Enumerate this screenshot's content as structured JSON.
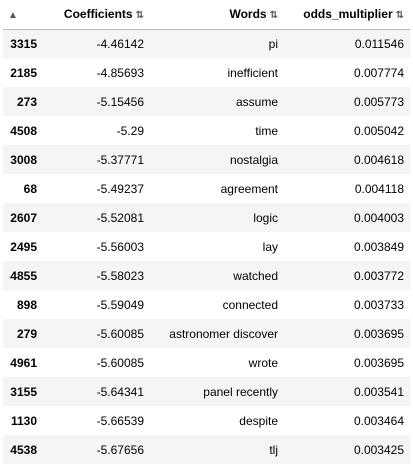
{
  "table": {
    "headers": [
      "",
      "Coefficients",
      "Words",
      "odds_multiplier"
    ],
    "rows": [
      {
        "index": "3315",
        "coef": "-4.46142",
        "word": "pi",
        "odds": "0.011546"
      },
      {
        "index": "2185",
        "coef": "-4.85693",
        "word": "inefficient",
        "odds": "0.007774"
      },
      {
        "index": "273",
        "coef": "-5.15456",
        "word": "assume",
        "odds": "0.005773"
      },
      {
        "index": "4508",
        "coef": "-5.29",
        "word": "time",
        "odds": "0.005042"
      },
      {
        "index": "3008",
        "coef": "-5.37771",
        "word": "nostalgia",
        "odds": "0.004618"
      },
      {
        "index": "68",
        "coef": "-5.49237",
        "word": "agreement",
        "odds": "0.004118"
      },
      {
        "index": "2607",
        "coef": "-5.52081",
        "word": "logic",
        "odds": "0.004003"
      },
      {
        "index": "2495",
        "coef": "-5.56003",
        "word": "lay",
        "odds": "0.003849"
      },
      {
        "index": "4855",
        "coef": "-5.58023",
        "word": "watched",
        "odds": "0.003772"
      },
      {
        "index": "898",
        "coef": "-5.59049",
        "word": "connected",
        "odds": "0.003733"
      },
      {
        "index": "279",
        "coef": "-5.60085",
        "word": "astronomer discover",
        "odds": "0.003695"
      },
      {
        "index": "4961",
        "coef": "-5.60085",
        "word": "wrote",
        "odds": "0.003695"
      },
      {
        "index": "3155",
        "coef": "-5.64341",
        "word": "panel recently",
        "odds": "0.003541"
      },
      {
        "index": "1130",
        "coef": "-5.66539",
        "word": "despite",
        "odds": "0.003464"
      },
      {
        "index": "4538",
        "coef": "-5.67656",
        "word": "tlj",
        "odds": "0.003425"
      }
    ]
  },
  "icons": {
    "sort": "sort-arrows-icon"
  }
}
